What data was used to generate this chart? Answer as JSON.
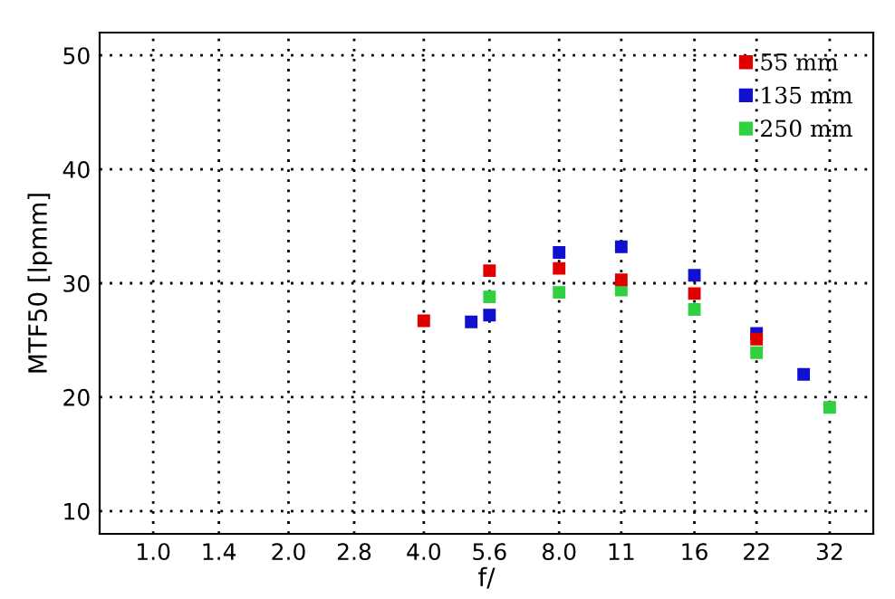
{
  "chart_data": {
    "type": "scatter",
    "xlabel": "f/",
    "ylabel": "MTF50 [lpmm]",
    "log": "x",
    "marker": "square",
    "grid": true,
    "legend": "top right",
    "xlim": [
      0.76,
      40
    ],
    "ylim": [
      8,
      52
    ],
    "xticks": [
      {
        "value": 1.0,
        "label": "1.0"
      },
      1.4,
      {
        "value": 2.0,
        "label": "2.0"
      },
      2.8,
      {
        "value": 4.0,
        "label": "4.0"
      },
      5.6,
      {
        "value": 8.0,
        "label": "8.0"
      },
      11,
      16,
      22,
      32
    ],
    "yticks": [
      10,
      20,
      30,
      40,
      50
    ],
    "series": [
      {
        "name": "55 mm",
        "color": "#e00000",
        "x": [
          4.0,
          5.6,
          8.0,
          11,
          16,
          22
        ],
        "values": [
          26.7,
          31.1,
          31.3,
          30.3,
          29.1,
          25.1
        ]
      },
      {
        "name": "135 mm",
        "color": "#1010d0",
        "x": [
          5.1,
          5.6,
          8.0,
          11,
          16,
          22,
          28
        ],
        "values": [
          26.6,
          27.2,
          32.7,
          33.2,
          30.7,
          25.6,
          22.0
        ]
      },
      {
        "name": "250 mm",
        "color": "#30d040",
        "x": [
          5.6,
          8.0,
          11,
          16,
          22,
          32
        ],
        "values": [
          28.8,
          29.2,
          29.4,
          27.7,
          23.9,
          19.1
        ]
      }
    ]
  }
}
